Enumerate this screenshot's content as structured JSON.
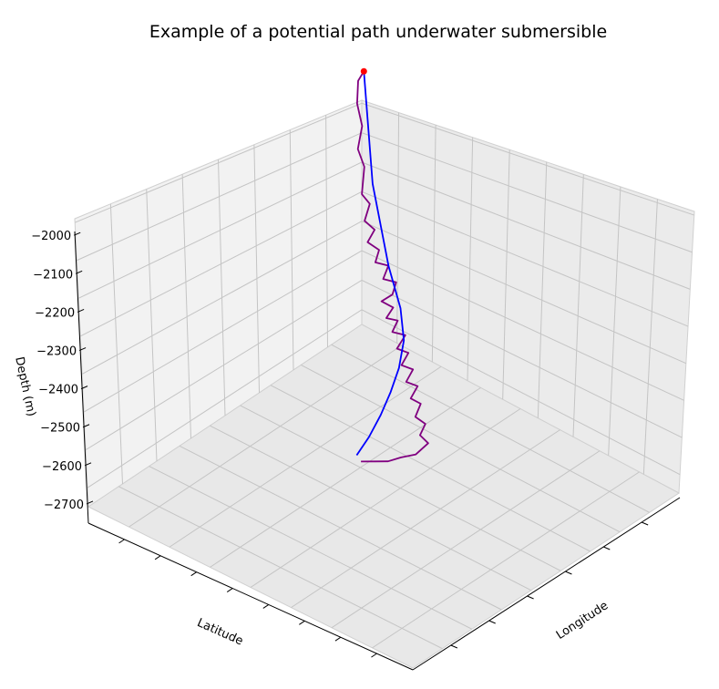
{
  "chart_data": {
    "type": "line",
    "title": "Example of a potential path underwater submersible",
    "xlabel": "Longitude",
    "ylabel": "Latitude",
    "zlabel": "Depth (m)",
    "zlim": [
      -2700,
      -2000
    ],
    "zticks": [
      "−2000",
      "−2100",
      "−2200",
      "−2300",
      "−2400",
      "−2500",
      "−2600",
      "−2700"
    ],
    "x_tick_labels_visible": false,
    "y_tick_labels_visible": false,
    "grid": true,
    "pane_color": "#f2f2f2",
    "series": [
      {
        "role": "submersible-wander-path",
        "color": "#800080",
        "note_units": "points given as (longitude-index 0-1, latitude-index 0-1, depth m)",
        "points": [
          [
            0.05,
            0.05,
            -2000
          ],
          [
            0.1,
            0.06,
            -2010
          ],
          [
            0.13,
            0.08,
            -2060
          ],
          [
            0.12,
            0.1,
            -2120
          ],
          [
            0.16,
            0.11,
            -2170
          ],
          [
            0.14,
            0.13,
            -2220
          ],
          [
            0.18,
            0.15,
            -2280
          ],
          [
            0.15,
            0.17,
            -2310
          ],
          [
            0.22,
            0.2,
            -2330
          ],
          [
            0.2,
            0.24,
            -2350
          ],
          [
            0.27,
            0.26,
            -2360
          ],
          [
            0.24,
            0.3,
            -2380
          ],
          [
            0.3,
            0.33,
            -2390
          ],
          [
            0.26,
            0.37,
            -2400
          ],
          [
            0.33,
            0.4,
            -2410
          ],
          [
            0.29,
            0.44,
            -2420
          ],
          [
            0.35,
            0.47,
            -2430
          ],
          [
            0.4,
            0.45,
            -2440
          ],
          [
            0.38,
            0.5,
            -2450
          ],
          [
            0.45,
            0.52,
            -2455
          ],
          [
            0.42,
            0.56,
            -2460
          ],
          [
            0.48,
            0.58,
            -2470
          ],
          [
            0.44,
            0.62,
            -2480
          ],
          [
            0.52,
            0.64,
            -2490
          ],
          [
            0.49,
            0.68,
            -2500
          ],
          [
            0.56,
            0.7,
            -2510
          ],
          [
            0.53,
            0.74,
            -2520
          ],
          [
            0.6,
            0.76,
            -2530
          ],
          [
            0.57,
            0.8,
            -2540
          ],
          [
            0.64,
            0.82,
            -2550
          ],
          [
            0.62,
            0.86,
            -2560
          ],
          [
            0.68,
            0.88,
            -2575
          ],
          [
            0.66,
            0.92,
            -2590
          ],
          [
            0.72,
            0.94,
            -2600
          ],
          [
            0.7,
            0.97,
            -2620
          ],
          [
            0.76,
            0.95,
            -2640
          ],
          [
            0.8,
            0.9,
            -2650
          ],
          [
            0.84,
            0.86,
            -2660
          ],
          [
            0.86,
            0.8,
            -2670
          ],
          [
            0.88,
            0.74,
            -2680
          ]
        ]
      },
      {
        "role": "direct-route",
        "color": "#0000ff",
        "points": [
          [
            0.05,
            0.05,
            -2000
          ],
          [
            0.05,
            0.1,
            -2300
          ],
          [
            0.06,
            0.2,
            -2500
          ],
          [
            0.12,
            0.32,
            -2570
          ],
          [
            0.25,
            0.45,
            -2590
          ],
          [
            0.4,
            0.55,
            -2600
          ],
          [
            0.55,
            0.63,
            -2605
          ],
          [
            0.7,
            0.7,
            -2610
          ],
          [
            0.85,
            0.76,
            -2615
          ],
          [
            0.98,
            0.8,
            -2620
          ]
        ]
      }
    ],
    "start_marker": {
      "color": "#ff0000",
      "point": [
        0.05,
        0.05,
        -2000
      ]
    }
  }
}
